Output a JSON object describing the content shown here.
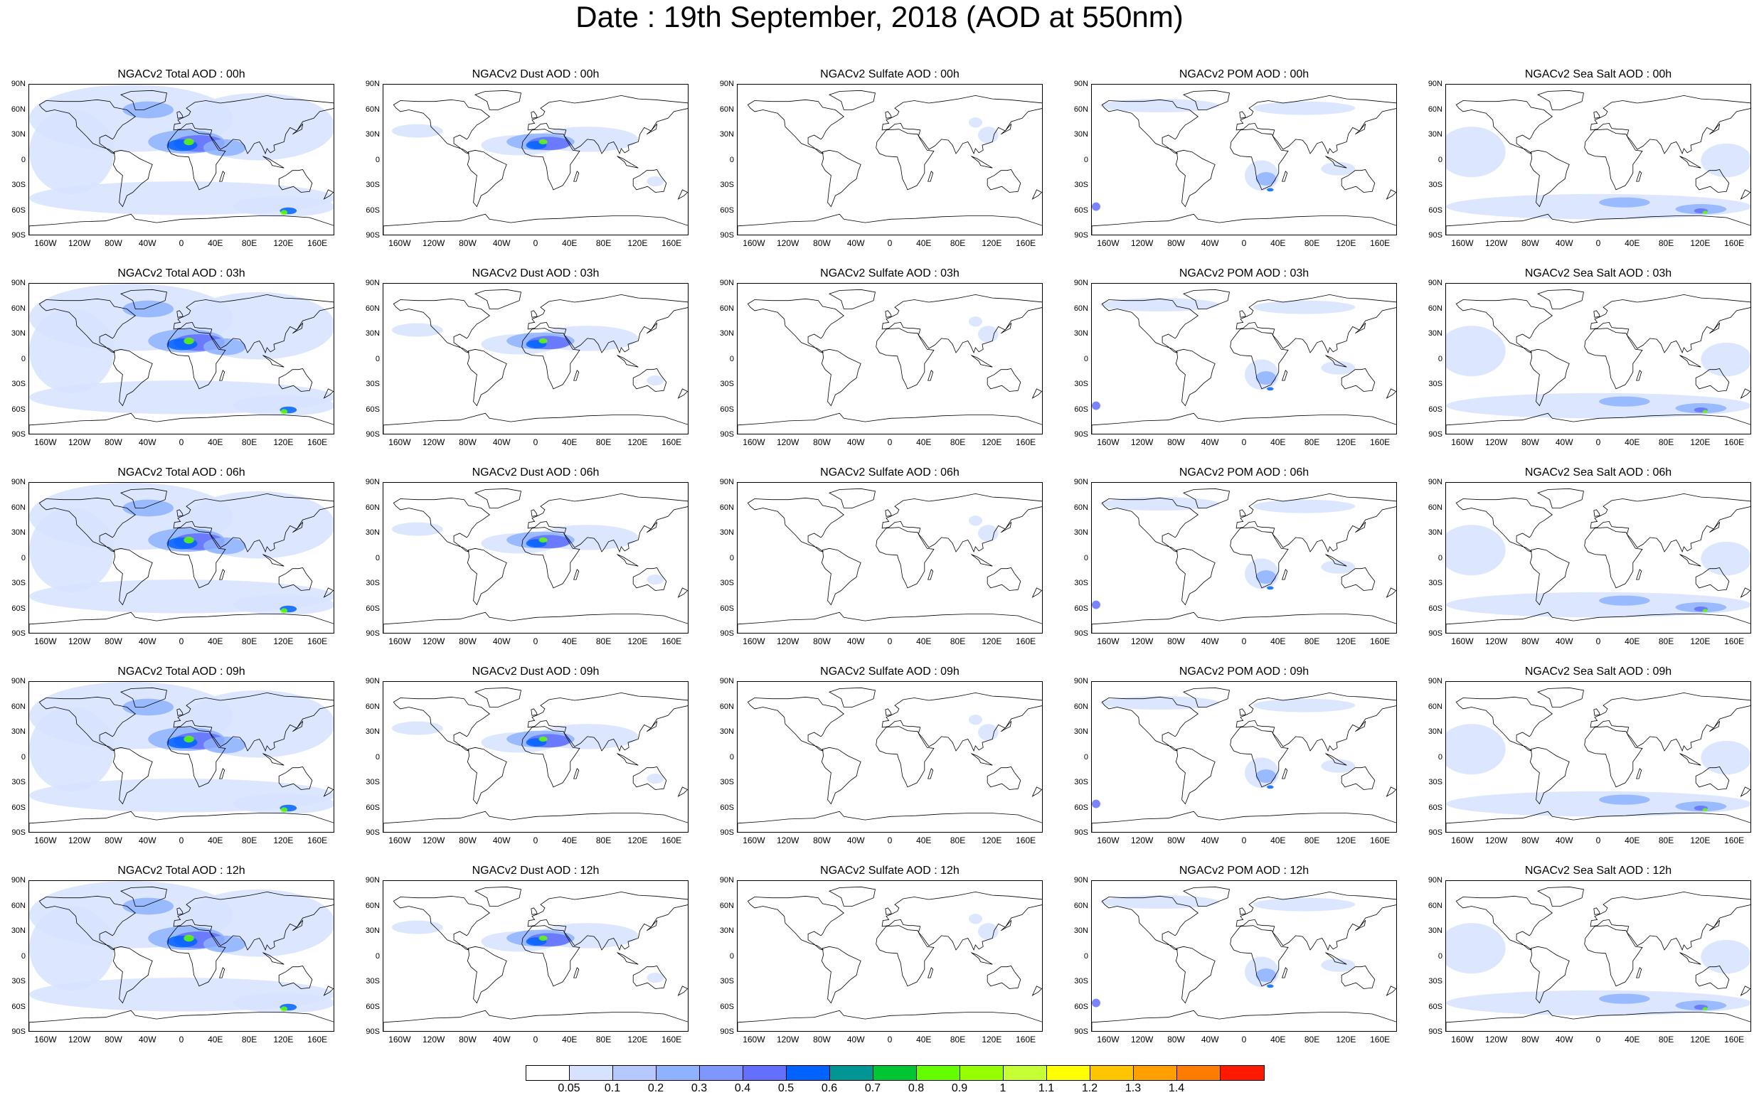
{
  "title": "Date : 19th September, 2018 (AOD at 550nm)",
  "panels": [
    {
      "title": "NGACv2 Total AOD : 00h",
      "species": "total",
      "hour": "00h"
    },
    {
      "title": "NGACv2 Dust AOD : 00h",
      "species": "dust",
      "hour": "00h"
    },
    {
      "title": "NGACv2 Sulfate AOD : 00h",
      "species": "sulfate",
      "hour": "00h"
    },
    {
      "title": "NGACv2 POM AOD : 00h",
      "species": "pom",
      "hour": "00h"
    },
    {
      "title": "NGACv2 Sea Salt AOD : 00h",
      "species": "seasalt",
      "hour": "00h"
    },
    {
      "title": "NGACv2 Total AOD : 03h",
      "species": "total",
      "hour": "03h"
    },
    {
      "title": "NGACv2 Dust AOD : 03h",
      "species": "dust",
      "hour": "03h"
    },
    {
      "title": "NGACv2 Sulfate AOD : 03h",
      "species": "sulfate",
      "hour": "03h"
    },
    {
      "title": "NGACv2 POM AOD : 03h",
      "species": "pom",
      "hour": "03h"
    },
    {
      "title": "NGACv2 Sea Salt AOD : 03h",
      "species": "seasalt",
      "hour": "03h"
    },
    {
      "title": "NGACv2 Total AOD : 06h",
      "species": "total",
      "hour": "06h"
    },
    {
      "title": "NGACv2 Dust AOD : 06h",
      "species": "dust",
      "hour": "06h"
    },
    {
      "title": "NGACv2 Sulfate AOD : 06h",
      "species": "sulfate",
      "hour": "06h"
    },
    {
      "title": "NGACv2 POM AOD : 06h",
      "species": "pom",
      "hour": "06h"
    },
    {
      "title": "NGACv2 Sea Salt AOD : 06h",
      "species": "seasalt",
      "hour": "06h"
    },
    {
      "title": "NGACv2 Total AOD : 09h",
      "species": "total",
      "hour": "09h"
    },
    {
      "title": "NGACv2 Dust AOD : 09h",
      "species": "dust",
      "hour": "09h"
    },
    {
      "title": "NGACv2 Sulfate AOD : 09h",
      "species": "sulfate",
      "hour": "09h"
    },
    {
      "title": "NGACv2 POM AOD : 09h",
      "species": "pom",
      "hour": "09h"
    },
    {
      "title": "NGACv2 Sea Salt  AOD : 09h",
      "species": "seasalt",
      "hour": "09h"
    },
    {
      "title": "NGACv2 Total AOD :  12h",
      "species": "total",
      "hour": "12h"
    },
    {
      "title": "NGACv2 Dust AOD : 12h",
      "species": "dust",
      "hour": "12h"
    },
    {
      "title": "NGACv2 Sulfate AOD : 12h",
      "species": "sulfate",
      "hour": "12h"
    },
    {
      "title": "NGACv2 POM  AOD : 12h",
      "species": "pom",
      "hour": "12h"
    },
    {
      "title": "NGACv2 Sea Salt  AOD : 12h",
      "species": "seasalt",
      "hour": "12h"
    }
  ],
  "lat_ticks": [
    "90N",
    "60N",
    "30N",
    "0",
    "30S",
    "60S",
    "90S"
  ],
  "lon_ticks": [
    "160W",
    "120W",
    "80W",
    "40W",
    "0",
    "40E",
    "80E",
    "120E",
    "160E"
  ],
  "colorbar": {
    "colors": [
      "#ffffff",
      "#d6e2ff",
      "#b5c9ff",
      "#8eb2ff",
      "#7f96ff",
      "#6370ff",
      "#0063ff",
      "#009696",
      "#00c633",
      "#63ff00",
      "#96ff00",
      "#c6ff33",
      "#ffff00",
      "#ffc600",
      "#ffa000",
      "#ff7c00",
      "#ff1900"
    ],
    "labels": [
      "0.05",
      "0.1",
      "0.2",
      "0.3",
      "0.4",
      "0.5",
      "0.6",
      "0.7",
      "0.8",
      "0.9",
      "1",
      "1.1",
      "1.2",
      "1.3",
      "1.4"
    ]
  },
  "colors": {
    "light_blue": "#d6e2ff",
    "mid_blue": "#8eb2ff",
    "blue": "#6370ff",
    "deep_blue": "#0063ff",
    "green": "#63ff00",
    "coastline": "#000000"
  }
}
